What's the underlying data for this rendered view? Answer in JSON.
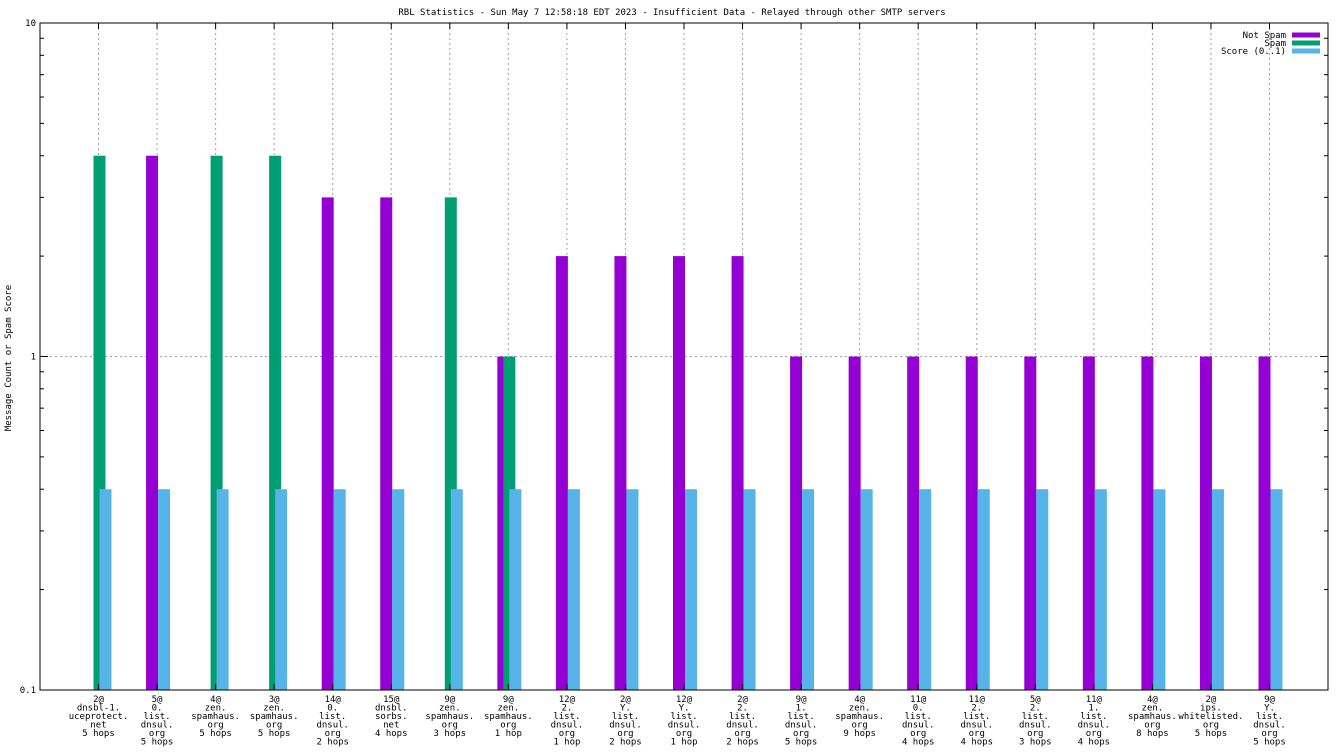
{
  "colors": {
    "not_spam": "#9400d3",
    "spam": "#009e73",
    "score": "#56b4e9"
  },
  "chart_data": {
    "type": "bar",
    "title": "RBL Statistics - Sun May  7 12:58:18 EDT 2023 - Insufficient Data - Relayed through other SMTP servers",
    "ylabel": "Message Count or Spam Score",
    "xlabel": "",
    "yscale": "log",
    "ylim": [
      0.1,
      10
    ],
    "yticks": [
      "0.1",
      "1",
      "10"
    ],
    "grid": true,
    "legend_position": "top-right",
    "categories": [
      [
        "2@",
        "dnsbl-1.",
        "uceprotect.",
        "net",
        "5 hops"
      ],
      [
        "5@",
        "0.",
        "list.",
        "dnsul.",
        "org",
        "5 hops"
      ],
      [
        "4@",
        "zen.",
        "spamhaus.",
        "org",
        "5 hops"
      ],
      [
        "3@",
        "zen.",
        "spamhaus.",
        "org",
        "5 hops"
      ],
      [
        "14@",
        "0.",
        "list.",
        "dnsul.",
        "org",
        "2 hops"
      ],
      [
        "15@",
        "dnsbl.",
        "sorbs.",
        "net",
        "4 hops"
      ],
      [
        "9@",
        "zen.",
        "spamhaus.",
        "org",
        "3 hops"
      ],
      [
        "9@",
        "zen.",
        "spamhaus.",
        "org",
        "1 hop"
      ],
      [
        "12@",
        "2.",
        "list.",
        "dnsul.",
        "org",
        "1 hop"
      ],
      [
        "2@",
        "Y.",
        "list.",
        "dnsul.",
        "org",
        "2 hops"
      ],
      [
        "12@",
        "Y.",
        "list.",
        "dnsul.",
        "org",
        "1 hop"
      ],
      [
        "2@",
        "2.",
        "list.",
        "dnsul.",
        "org",
        "2 hops"
      ],
      [
        "9@",
        "1.",
        "list.",
        "dnsul.",
        "org",
        "5 hops"
      ],
      [
        "4@",
        "zen.",
        "spamhaus.",
        "org",
        "9 hops"
      ],
      [
        "11@",
        "0.",
        "list.",
        "dnsul.",
        "org",
        "4 hops"
      ],
      [
        "11@",
        "2.",
        "list.",
        "dnsul.",
        "org",
        "4 hops"
      ],
      [
        "5@",
        "2.",
        "list.",
        "dnsul.",
        "org",
        "3 hops"
      ],
      [
        "11@",
        "1.",
        "list.",
        "dnsul.",
        "org",
        "4 hops"
      ],
      [
        "4@",
        "zen.",
        "spamhaus.",
        "org",
        "8 hops"
      ],
      [
        "2@",
        "ips.",
        "whitelisted.",
        "org",
        "5 hops"
      ],
      [
        "9@",
        "Y.",
        "list.",
        "dnsul.",
        "org",
        "5 hops"
      ]
    ],
    "series": [
      {
        "name": "Not Spam",
        "values": [
          0,
          4,
          0,
          0,
          3,
          3,
          0,
          1,
          2,
          2,
          2,
          2,
          1,
          1,
          1,
          1,
          1,
          1,
          1,
          1,
          1
        ]
      },
      {
        "name": "Spam",
        "values": [
          4,
          0,
          4,
          4,
          0,
          0,
          3,
          1,
          0,
          0,
          0,
          0,
          0,
          0,
          0,
          0,
          0,
          0,
          0,
          0,
          0
        ]
      },
      {
        "name": "Score (0..1)",
        "values": [
          0.4,
          0.4,
          0.4,
          0.4,
          0.4,
          0.4,
          0.4,
          0.4,
          0.4,
          0.4,
          0.4,
          0.4,
          0.4,
          0.4,
          0.4,
          0.4,
          0.4,
          0.4,
          0.4,
          0.4,
          0.4
        ]
      }
    ]
  }
}
